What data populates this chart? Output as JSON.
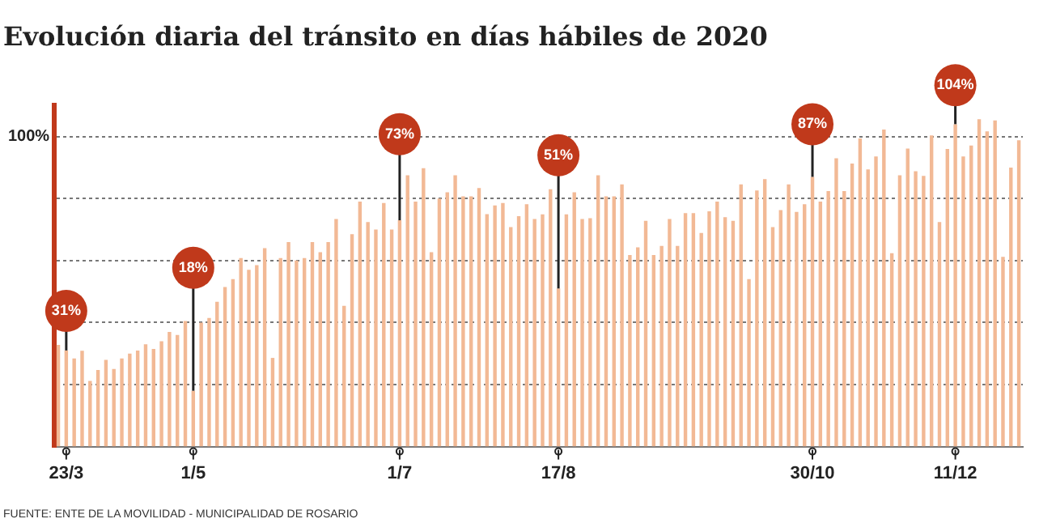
{
  "chart_data": {
    "type": "bar",
    "title": "Evolución diaria del tránsito en días hábiles de 2020",
    "categories": [
      null,
      "23/3",
      null,
      null,
      null,
      null,
      null,
      null,
      null,
      null,
      null,
      null,
      null,
      null,
      null,
      null,
      null,
      "1/5",
      null,
      null,
      null,
      null,
      null,
      null,
      null,
      null,
      null,
      null,
      null,
      null,
      null,
      null,
      null,
      null,
      null,
      null,
      null,
      null,
      null,
      null,
      null,
      null,
      null,
      "1/7",
      null,
      null,
      null,
      null,
      null,
      null,
      null,
      null,
      null,
      null,
      null,
      null,
      null,
      null,
      null,
      null,
      null,
      null,
      null,
      "17/8",
      null,
      null,
      null,
      null,
      null,
      null,
      null,
      null,
      null,
      null,
      null,
      null,
      null,
      null,
      null,
      null,
      null,
      null,
      null,
      null,
      null,
      null,
      null,
      null,
      null,
      null,
      null,
      null,
      null,
      null,
      null,
      "30/10",
      null,
      null,
      null,
      null,
      null,
      null,
      null,
      null,
      null,
      null,
      null,
      null,
      null,
      null,
      null,
      null,
      null,
      "11/12",
      null,
      null,
      null,
      null,
      null,
      null,
      null,
      null
    ],
    "values": [
      32.8,
      31,
      28.4,
      30.9,
      21.2,
      24.7,
      28,
      25,
      28.4,
      30,
      31,
      33,
      31.5,
      34,
      37,
      36,
      40.5,
      18,
      40,
      41.5,
      46.7,
      51.5,
      54,
      60.8,
      57,
      58.5,
      64,
      28.6,
      60.8,
      66,
      60,
      60.8,
      66,
      62.7,
      66,
      73.4,
      45.4,
      68.5,
      79,
      72.4,
      70,
      78.6,
      70,
      73,
      87.5,
      79,
      89.8,
      62.7,
      80,
      82,
      87.5,
      80.7,
      80.7,
      83.4,
      75,
      77.8,
      78.6,
      70.8,
      74.3,
      78.2,
      73.4,
      74.9,
      83,
      51,
      74.9,
      82,
      73.4,
      73.7,
      87.5,
      80.7,
      80.7,
      84.6,
      61.8,
      64.3,
      72.8,
      61.8,
      64.7,
      73.4,
      64.7,
      75.3,
      75.3,
      68.9,
      75.9,
      79,
      74,
      72.8,
      84.6,
      54,
      82.6,
      86.3,
      70.8,
      76.3,
      84.6,
      75.7,
      78.2,
      87,
      79,
      82.4,
      93,
      82.4,
      91.3,
      99.4,
      89.4,
      93.6,
      102.3,
      62.4,
      87.5,
      96.1,
      88.8,
      87.3,
      100.4,
      72.4,
      96,
      104,
      93.6,
      97.1,
      105.6,
      101.7,
      105.2,
      61.2,
      90,
      98.8
    ],
    "value_labels": [
      null,
      "31%",
      null,
      null,
      null,
      null,
      null,
      null,
      null,
      null,
      null,
      null,
      null,
      null,
      null,
      null,
      null,
      "18%",
      null,
      null,
      null,
      null,
      null,
      null,
      null,
      null,
      null,
      null,
      null,
      null,
      null,
      null,
      null,
      null,
      null,
      null,
      null,
      null,
      null,
      null,
      null,
      null,
      null,
      "73%",
      null,
      null,
      null,
      null,
      null,
      null,
      null,
      null,
      null,
      null,
      null,
      null,
      null,
      null,
      null,
      null,
      null,
      null,
      null,
      "51%",
      null,
      null,
      null,
      null,
      null,
      null,
      null,
      null,
      null,
      null,
      null,
      null,
      null,
      null,
      null,
      null,
      null,
      null,
      null,
      null,
      null,
      null,
      null,
      null,
      null,
      null,
      null,
      null,
      null,
      null,
      null,
      "87%",
      null,
      null,
      null,
      null,
      null,
      null,
      null,
      null,
      null,
      null,
      null,
      null,
      null,
      null,
      null,
      null,
      null,
      "104%",
      null,
      null,
      null,
      null,
      null,
      null,
      null,
      null
    ],
    "color": "#f2b995",
    "ylim": [
      0,
      110
    ],
    "yticks": [
      {
        "value": 20,
        "label": null
      },
      {
        "value": 40,
        "label": null
      },
      {
        "value": 60,
        "label": null
      },
      {
        "value": 80,
        "label": null
      },
      {
        "value": 100,
        "label": "100%"
      }
    ],
    "grid": "y",
    "annotations": [
      "FUENTE: ENTE DE LA MOVILIDAD - MUNICIPALIDAD DE ROSARIO"
    ]
  }
}
